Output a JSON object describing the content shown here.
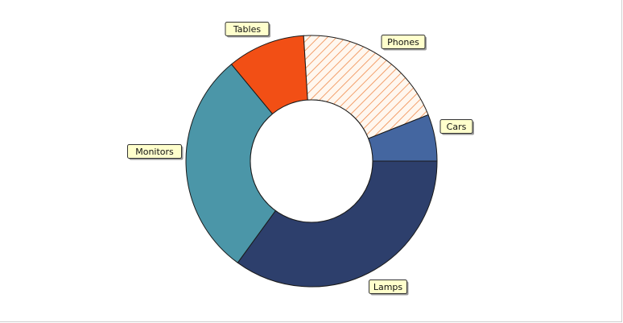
{
  "chart_data": {
    "type": "pie",
    "variant": "donut",
    "categories": [
      "Lamps",
      "Monitors",
      "Tables",
      "Phones",
      "Cars"
    ],
    "values": [
      35,
      29,
      10,
      20,
      6
    ],
    "colors": [
      "#2d3f6c",
      "#4b96a8",
      "#f24f15",
      "#f08a4b",
      "#4466a0"
    ],
    "patterns": [
      null,
      null,
      null,
      "diagonal-hatch",
      null
    ],
    "legend": "none",
    "labels_style": "callout"
  }
}
